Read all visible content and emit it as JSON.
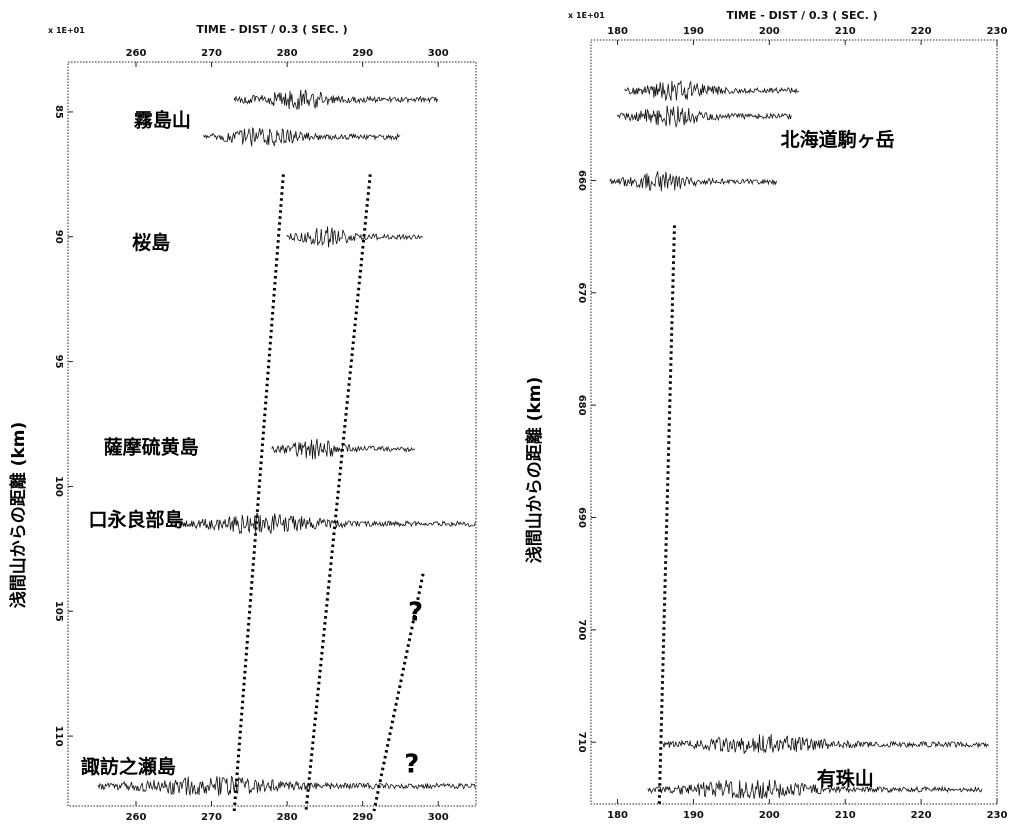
{
  "chart_data": [
    {
      "type": "line",
      "title": "TIME - DIST / 0.3 ( SEC. )",
      "scale_label": "x 1E+01",
      "ylabel": "浅間山からの距離 (km)",
      "xlim": [
        251,
        305
      ],
      "ylim": [
        83,
        112.8
      ],
      "x_ticks": [
        260,
        270,
        280,
        290,
        300
      ],
      "y_ticks": [
        85,
        90,
        95,
        100,
        105,
        110
      ],
      "traces": [
        {
          "y": 84.5,
          "x_start": 273,
          "x_end": 300
        },
        {
          "y": 86,
          "x_start": 269,
          "x_end": 295
        },
        {
          "y": 90,
          "x_start": 280,
          "x_end": 298
        },
        {
          "y": 98.5,
          "x_start": 278,
          "x_end": 297
        },
        {
          "y": 101.5,
          "x_start": 265,
          "x_end": 305
        },
        {
          "y": 112,
          "x_start": 255,
          "x_end": 305
        }
      ],
      "labels": [
        {
          "text": "霧島山",
          "x": 263.5,
          "y": 85.3
        },
        {
          "text": "桜島",
          "x": 262,
          "y": 90.2
        },
        {
          "text": "薩摩硫黄島",
          "x": 262,
          "y": 98.4
        },
        {
          "text": "口永良部島",
          "x": 260,
          "y": 101.3
        },
        {
          "text": "諏訪之瀬島",
          "x": 259,
          "y": 111.2
        }
      ],
      "questions": [
        {
          "text": "?",
          "x": 297,
          "y": 105
        },
        {
          "text": "?",
          "x": 296.5,
          "y": 111.1
        }
      ],
      "dotted_lines": [
        {
          "x": [
            279.5,
            273
          ],
          "y": [
            87.5,
            113
          ]
        },
        {
          "x": [
            291,
            282.5
          ],
          "y": [
            87.5,
            113
          ]
        },
        {
          "x": [
            298,
            291.5
          ],
          "y": [
            103.5,
            113
          ]
        }
      ]
    },
    {
      "type": "line",
      "title": "TIME - DIST / 0.3 ( SEC. )",
      "scale_label": "x 1E+01",
      "ylabel": "浅間山からの距離 (km)",
      "xlim": [
        176.5,
        230
      ],
      "ylim": [
        647.5,
        715.5
      ],
      "x_ticks": [
        180,
        190,
        200,
        210,
        220,
        230
      ],
      "y_ticks": [
        660,
        670,
        680,
        690,
        700,
        710
      ],
      "traces": [
        {
          "y": 652,
          "x_start": 181,
          "x_end": 204
        },
        {
          "y": 654.3,
          "x_start": 180,
          "x_end": 203
        },
        {
          "y": 660.1,
          "x_start": 179,
          "x_end": 201
        },
        {
          "y": 710.2,
          "x_start": 186,
          "x_end": 229
        },
        {
          "y": 714.2,
          "x_start": 184,
          "x_end": 228
        }
      ],
      "labels": [
        {
          "text": "北海道駒ヶ岳",
          "x": 209,
          "y": 656.3
        },
        {
          "text": "有珠山",
          "x": 210,
          "y": 713.2
        }
      ],
      "dotted_lines": [
        {
          "x": [
            187.5,
            185.5
          ],
          "y": [
            664,
            715.5
          ]
        }
      ]
    }
  ]
}
